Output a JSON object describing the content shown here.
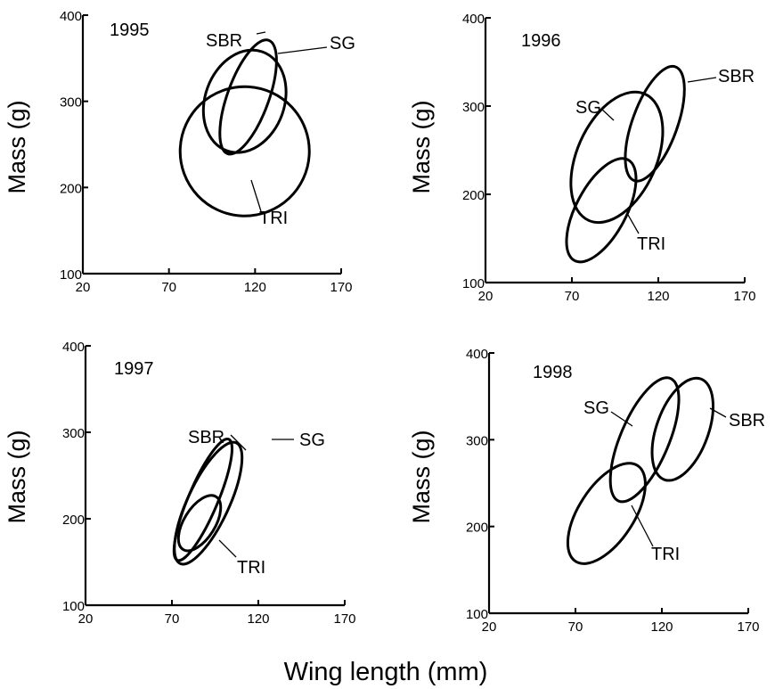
{
  "figure": {
    "xlabel": "Wing length (mm)"
  },
  "chart_data": [
    {
      "type": "scatter",
      "year_label": "1995",
      "ylabel": "Mass (g)",
      "xlim": [
        20,
        170
      ],
      "ylim": [
        100,
        400
      ],
      "xticks": [
        "20",
        "70",
        "120",
        "170"
      ],
      "yticks": [
        "100",
        "200",
        "300",
        "400"
      ],
      "ellipses": [
        {
          "name": "SBR",
          "center": [
            116,
            305
          ],
          "rx": 35.0,
          "ry": 12.0,
          "angle": 70
        },
        {
          "name": "SG",
          "center": [
            114,
            300
          ],
          "rx": 30.5,
          "ry": 23.0,
          "angle": 70
        },
        {
          "name": "TRI",
          "center": [
            114,
            242
          ],
          "rx": 37.5,
          "ry": 37.5,
          "angle": 65
        }
      ]
    },
    {
      "type": "scatter",
      "year_label": "1996",
      "ylabel": "Mass (g)",
      "xlim": [
        20,
        170
      ],
      "ylim": [
        100,
        400
      ],
      "xticks": [
        "20",
        "70",
        "120",
        "170"
      ],
      "yticks": [
        "100",
        "200",
        "300",
        "400"
      ],
      "ellipses": [
        {
          "name": "SBR",
          "center": [
            118,
            280
          ],
          "rx": 35.0,
          "ry": 13.0,
          "angle": 70
        },
        {
          "name": "SG",
          "center": [
            96,
            242
          ],
          "rx": 40.0,
          "ry": 23.0,
          "angle": 66
        },
        {
          "name": "TRI",
          "center": [
            87,
            182
          ],
          "rx": 33.0,
          "ry": 14.5,
          "angle": 62
        }
      ]
    },
    {
      "type": "scatter",
      "year_label": "1997",
      "ylabel": "Mass (g)",
      "xlim": [
        20,
        170
      ],
      "ylim": [
        100,
        400
      ],
      "xticks": [
        "20",
        "70",
        "120",
        "170"
      ],
      "yticks": [
        "100",
        "200",
        "300",
        "400"
      ],
      "ellipses": [
        {
          "name": "SBR",
          "center": [
            88,
            222
          ],
          "rx": 38.0,
          "ry": 8.5,
          "angle": 67
        },
        {
          "name": "SG",
          "center": [
            91,
            218
          ],
          "rx": 38.5,
          "ry": 12.0,
          "angle": 65
        },
        {
          "name": "TRI",
          "center": [
            86,
            195
          ],
          "rx": 18.0,
          "ry": 9.0,
          "angle": 58
        }
      ]
    },
    {
      "type": "scatter",
      "year_label": "1998",
      "ylabel": "Mass (g)",
      "xlim": [
        20,
        170
      ],
      "ylim": [
        100,
        400
      ],
      "xticks": [
        "20",
        "70",
        "120",
        "170"
      ],
      "yticks": [
        "100",
        "200",
        "300",
        "400"
      ],
      "ellipses": [
        {
          "name": "SBR",
          "center": [
            132,
            312
          ],
          "rx": 31.0,
          "ry": 15.0,
          "angle": 70
        },
        {
          "name": "SG",
          "center": [
            110,
            300
          ],
          "rx": 38.5,
          "ry": 14.0,
          "angle": 67
        },
        {
          "name": "TRI",
          "center": [
            88,
            215
          ],
          "rx": 33.0,
          "ry": 16.0,
          "angle": 57
        }
      ]
    }
  ]
}
